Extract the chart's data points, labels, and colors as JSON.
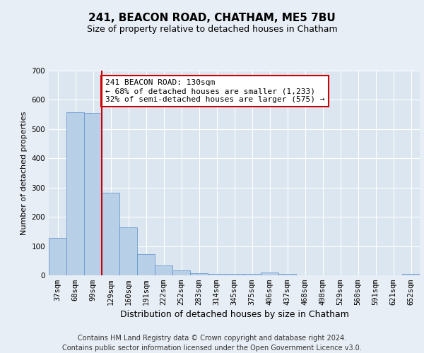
{
  "title": "241, BEACON ROAD, CHATHAM, ME5 7BU",
  "subtitle": "Size of property relative to detached houses in Chatham",
  "xlabel": "Distribution of detached houses by size in Chatham",
  "ylabel": "Number of detached properties",
  "categories": [
    "37sqm",
    "68sqm",
    "99sqm",
    "129sqm",
    "160sqm",
    "191sqm",
    "222sqm",
    "252sqm",
    "283sqm",
    "314sqm",
    "345sqm",
    "375sqm",
    "406sqm",
    "437sqm",
    "468sqm",
    "498sqm",
    "529sqm",
    "560sqm",
    "591sqm",
    "621sqm",
    "652sqm"
  ],
  "values": [
    128,
    557,
    556,
    283,
    164,
    73,
    35,
    18,
    8,
    5,
    5,
    5,
    10,
    5,
    0,
    0,
    0,
    0,
    0,
    0,
    5
  ],
  "bar_color": "#b8cfe8",
  "bar_edge_color": "#5b8fc9",
  "vline_x_index": 2.5,
  "vline_color": "#cc0000",
  "annotation_text": "241 BEACON ROAD: 130sqm\n← 68% of detached houses are smaller (1,233)\n32% of semi-detached houses are larger (575) →",
  "annotation_box_color": "#ffffff",
  "annotation_box_edge": "#cc0000",
  "bg_color": "#e8eef5",
  "plot_bg_color": "#dce6f0",
  "grid_color": "#ffffff",
  "yticks": [
    0,
    100,
    200,
    300,
    400,
    500,
    600,
    700
  ],
  "ylim": [
    0,
    700
  ],
  "footer": "Contains HM Land Registry data © Crown copyright and database right 2024.\nContains public sector information licensed under the Open Government Licence v3.0.",
  "title_fontsize": 11,
  "subtitle_fontsize": 9,
  "ylabel_fontsize": 8,
  "xlabel_fontsize": 9,
  "tick_fontsize": 7.5,
  "footer_fontsize": 7,
  "annot_fontsize": 8
}
